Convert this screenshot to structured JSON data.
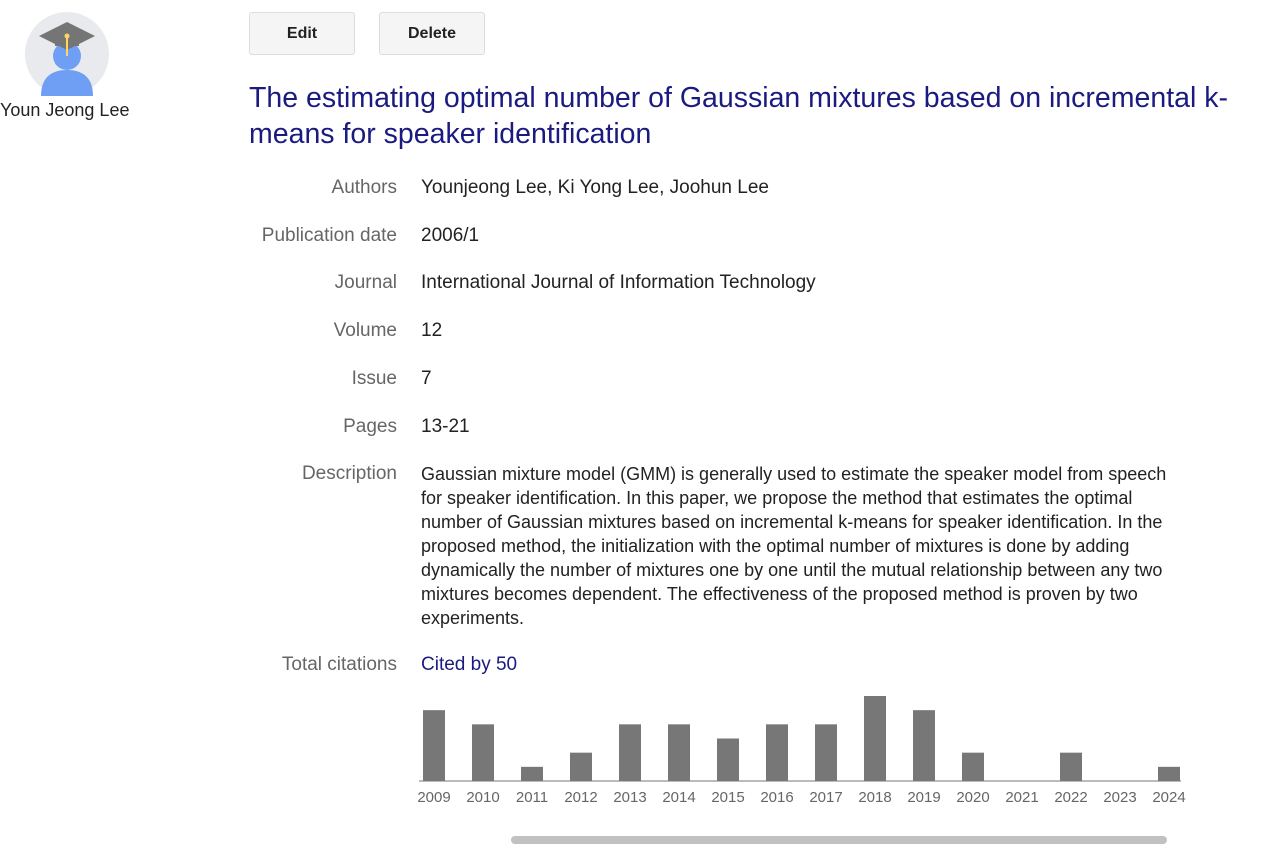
{
  "profile": {
    "name": "Youn Jeong Lee"
  },
  "toolbar": {
    "edit_label": "Edit",
    "delete_label": "Delete"
  },
  "article": {
    "title": "The estimating optimal number of Gaussian mixtures based on incremental k-means for speaker identification",
    "fields": [
      {
        "label": "Authors",
        "value": "Younjeong Lee, Ki Yong Lee, Joohun Lee"
      },
      {
        "label": "Publication date",
        "value": "2006/1"
      },
      {
        "label": "Journal",
        "value": "International Journal of Information Technology"
      },
      {
        "label": "Volume",
        "value": "12"
      },
      {
        "label": "Issue",
        "value": "7"
      },
      {
        "label": "Pages",
        "value": "13-21"
      },
      {
        "label": "Description",
        "value": "Gaussian mixture model (GMM) is generally used to estimate the speaker model from speech for speaker identification. In this paper, we propose the method that estimates the optimal number of Gaussian mixtures based on incremental k-means for speaker identification. In the proposed method, the initialization with the optimal number of mixtures is done by adding dynamically the number of mixtures one by one until the mutual relationship between any two mixtures becomes dependent. The effectiveness of the proposed method is proven by two experiments."
      },
      {
        "label": "Total citations",
        "value": "Cited by 50"
      }
    ]
  },
  "colors": {
    "bar": "#777777",
    "title": "#1a1a80",
    "link": "#1a1a80",
    "avatar_bg": "#e8eaed",
    "avatar_person": "#6e9ff5",
    "cap": "#757575",
    "tassel": "#fdd663"
  },
  "icons": {
    "avatar": "scholar-avatar-icon"
  },
  "chart_data": {
    "type": "bar",
    "categories": [
      "2009",
      "2010",
      "2011",
      "2012",
      "2013",
      "2014",
      "2015",
      "2016",
      "2017",
      "2018",
      "2019",
      "2020",
      "2021",
      "2022",
      "2023",
      "2024"
    ],
    "values": [
      5,
      4,
      1,
      2,
      4,
      4,
      3,
      4,
      4,
      6,
      5,
      2,
      0,
      2,
      0,
      1
    ],
    "title": "",
    "xlabel": "",
    "ylabel": "",
    "ylim": [
      0,
      6
    ],
    "grid": false,
    "legend": "none"
  }
}
